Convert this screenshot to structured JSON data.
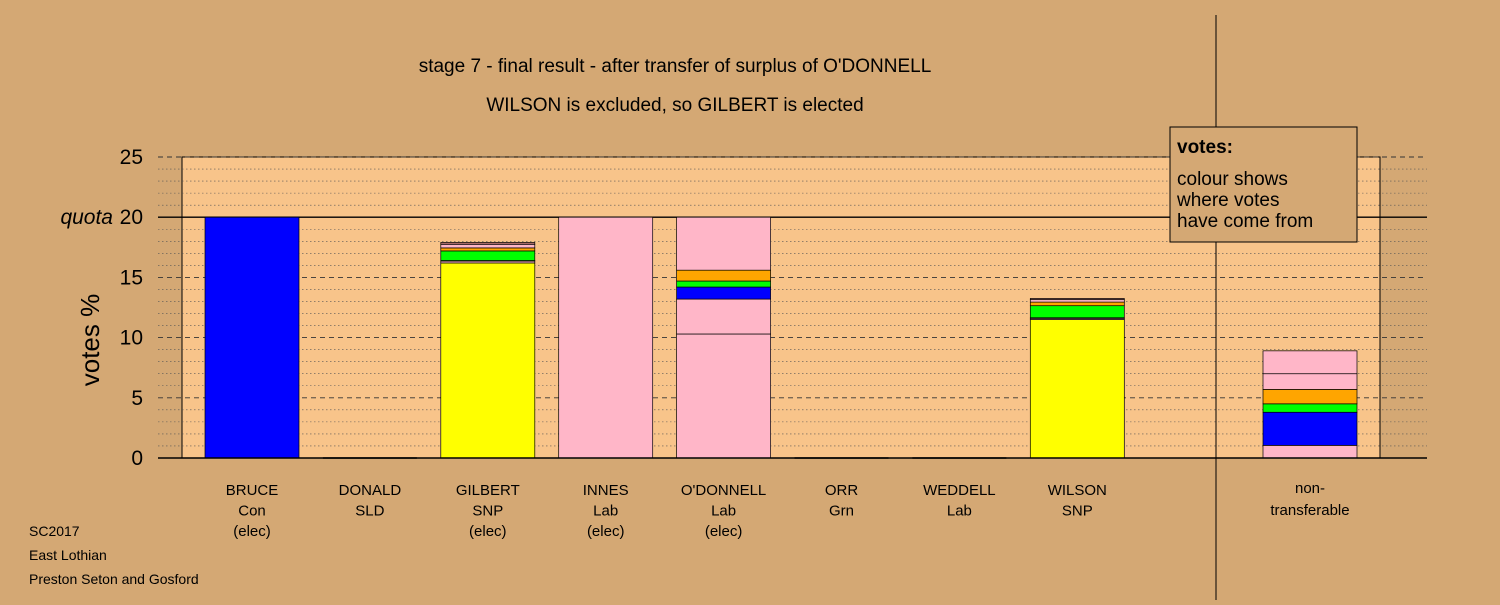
{
  "colors": {
    "background": "#d4a874",
    "plot_area": "#f8c48a",
    "Con": "#0000ff",
    "SNP": "#ffff00",
    "Lab": "#ffb6c8",
    "SLD": "#ffa500",
    "Grn": "#00ff00",
    "Other": "#b07070"
  },
  "chart_data": {
    "type": "bar",
    "stacked": true,
    "title": "stage 7 - final result - after transfer of surplus of O'DONNELL",
    "subtitle": "WILSON is excluded, so GILBERT is elected",
    "ylabel": "votes %",
    "ylim": [
      0,
      25
    ],
    "yticks": [
      0,
      5,
      10,
      15,
      20,
      25
    ],
    "quota": 20,
    "quota_label": "quota",
    "grid": true,
    "legend": {
      "title": "votes:",
      "lines": [
        "colour shows",
        "where votes",
        "have come from"
      ],
      "position": "top-right"
    },
    "footer": [
      "SC2017",
      "East Lothian",
      "Preston Seton and Gosford"
    ],
    "candidates": [
      {
        "name": "BRUCE",
        "party": "Con",
        "status": "(elec)",
        "segments": [
          {
            "from": "Con",
            "value": 20.0
          }
        ]
      },
      {
        "name": "DONALD",
        "party": "SLD",
        "status": "",
        "segments": []
      },
      {
        "name": "GILBERT",
        "party": "SNP",
        "status": "(elec)",
        "segments": [
          {
            "from": "SNP",
            "value": 16.2
          },
          {
            "from": "Lab",
            "value": 0.15
          },
          {
            "from": "Con",
            "value": 0.05
          },
          {
            "from": "Grn",
            "value": 0.8
          },
          {
            "from": "SLD",
            "value": 0.25
          },
          {
            "from": "Lab",
            "value": 0.3
          },
          {
            "from": "Other",
            "value": 0.15
          }
        ]
      },
      {
        "name": "INNES",
        "party": "Lab",
        "status": "(elec)",
        "segments": [
          {
            "from": "Lab",
            "value": 20.0
          }
        ]
      },
      {
        "name": "O'DONNELL",
        "party": "Lab",
        "status": "(elec)",
        "segments": [
          {
            "from": "Lab",
            "value": 10.3
          },
          {
            "from": "Lab",
            "value": 2.9
          },
          {
            "from": "Con",
            "value": 1.0
          },
          {
            "from": "Grn",
            "value": 0.5
          },
          {
            "from": "SLD",
            "value": 0.9
          },
          {
            "from": "Lab",
            "value": 4.4
          }
        ]
      },
      {
        "name": "ORR",
        "party": "Grn",
        "status": "",
        "segments": []
      },
      {
        "name": "WEDDELL",
        "party": "Lab",
        "status": "",
        "segments": []
      },
      {
        "name": "WILSON",
        "party": "SNP",
        "status": "",
        "segments": [
          {
            "from": "SNP",
            "value": 11.5
          },
          {
            "from": "Lab",
            "value": 0.1
          },
          {
            "from": "Con",
            "value": 0.05
          },
          {
            "from": "Grn",
            "value": 1.0
          },
          {
            "from": "SLD",
            "value": 0.3
          },
          {
            "from": "Lab",
            "value": 0.2
          },
          {
            "from": "Other",
            "value": 0.1
          }
        ]
      }
    ],
    "non_transferable": {
      "label": [
        "non-",
        "transferable"
      ],
      "segments": [
        {
          "from": "Lab",
          "value": 1.05
        },
        {
          "from": "Con",
          "value": 2.75
        },
        {
          "from": "Grn",
          "value": 0.7
        },
        {
          "from": "SLD",
          "value": 1.2
        },
        {
          "from": "Lab",
          "value": 1.3
        },
        {
          "from": "Lab",
          "value": 1.9
        }
      ]
    }
  }
}
